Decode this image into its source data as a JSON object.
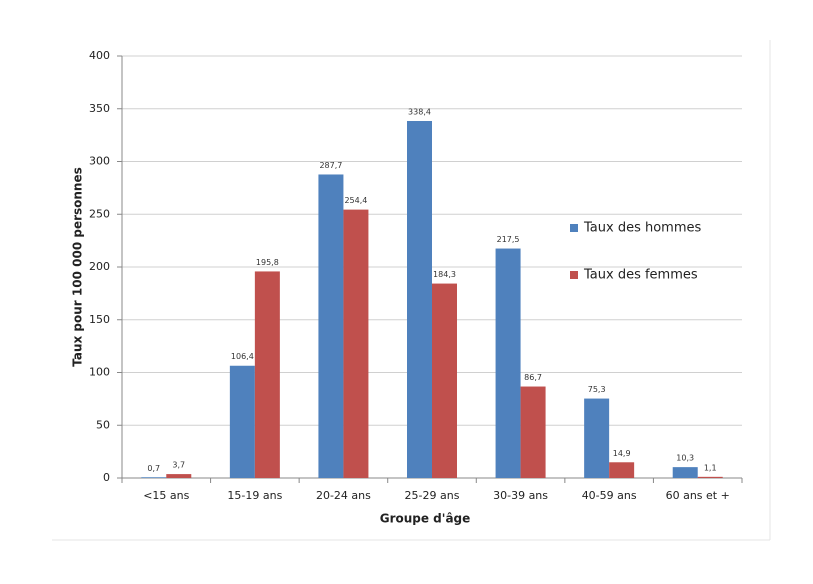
{
  "chart_data": {
    "type": "bar",
    "x_label": "Groupe d'âge",
    "y_label": "Taux pour 100 000 personnes",
    "categories": [
      "<15 ans",
      "15-19 ans",
      "20-24 ans",
      "25-29 ans",
      "30-39 ans",
      "40-59 ans",
      "60 ans et +"
    ],
    "series": [
      {
        "name": "Taux des hommes",
        "color": "#4f81bd",
        "values": [
          0.7,
          106.4,
          287.7,
          338.4,
          217.5,
          75.3,
          10.3
        ],
        "value_labels": [
          "0,7",
          "106,4",
          "287,7",
          "338,4",
          "217,5",
          "75,3",
          "10,3"
        ]
      },
      {
        "name": "Taux des femmes",
        "color": "#c0504d",
        "values": [
          3.7,
          195.8,
          254.4,
          184.3,
          86.7,
          14.9,
          1.1
        ],
        "value_labels": [
          "3,7",
          "195,8",
          "254,4",
          "184,3",
          "86,7",
          "14,9",
          "1,1"
        ]
      }
    ],
    "ylim": [
      0,
      400
    ],
    "yticks": [
      0,
      50,
      100,
      150,
      200,
      250,
      300,
      350,
      400
    ],
    "grid": true,
    "legend": "right"
  }
}
